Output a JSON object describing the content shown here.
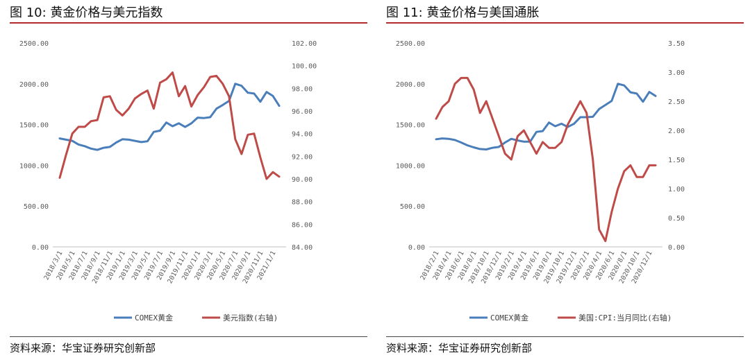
{
  "source_label": "资料来源：",
  "source_text": "华宝证券研究创新部",
  "chart_data": [
    {
      "type": "line",
      "title": "图 10:  黄金价格与美元指数",
      "x": [
        "2018/3/1",
        "2018/4/1",
        "2018/5/1",
        "2018/6/1",
        "2018/7/1",
        "2018/8/1",
        "2018/9/1",
        "2018/10/1",
        "2018/11/1",
        "2018/12/1",
        "2019/1/1",
        "2019/2/1",
        "2019/3/1",
        "2019/4/1",
        "2019/5/1",
        "2019/6/1",
        "2019/7/1",
        "2019/8/1",
        "2019/9/1",
        "2019/10/1",
        "2019/11/1",
        "2019/12/1",
        "2020/1/1",
        "2020/2/1",
        "2020/3/1",
        "2020/4/1",
        "2020/5/1",
        "2020/6/1",
        "2020/7/1",
        "2020/8/1",
        "2020/9/1",
        "2020/10/1",
        "2020/11/1",
        "2020/12/1",
        "2021/1/1",
        "2021/2/1"
      ],
      "x_tick_labels": [
        "2018/3/1",
        "2018/5/1",
        "2018/7/1",
        "2018/9/1",
        "2018/11/1",
        "2019/1/1",
        "2019/3/1",
        "2019/5/1",
        "2019/7/1",
        "2019/9/1",
        "2019/11/1",
        "2020/1/1",
        "2020/3/1",
        "2020/5/1",
        "2020/7/1",
        "2020/9/1",
        "2020/11/1",
        "2021/1/1"
      ],
      "y_left": {
        "min": 0,
        "max": 2500,
        "ticks": [
          "0.00",
          "500.00",
          "1000.00",
          "1500.00",
          "2000.00",
          "2500.00"
        ]
      },
      "y_right": {
        "min": 84,
        "max": 102,
        "ticks": [
          "84.00",
          "86.00",
          "88.00",
          "90.00",
          "92.00",
          "94.00",
          "96.00",
          "98.00",
          "100.00",
          "102.00"
        ]
      },
      "grid": false,
      "legend_position": "bottom",
      "series": [
        {
          "name": "COMEX黄金",
          "axis": "left",
          "color": "#4a7ebb",
          "values": [
            1330,
            1315,
            1300,
            1255,
            1235,
            1205,
            1190,
            1215,
            1225,
            1280,
            1320,
            1315,
            1300,
            1285,
            1295,
            1410,
            1425,
            1525,
            1480,
            1515,
            1470,
            1515,
            1585,
            1580,
            1590,
            1695,
            1740,
            1790,
            2000,
            1975,
            1890,
            1880,
            1780,
            1900,
            1850,
            1730
          ]
        },
        {
          "name": "美元指数(右轴)",
          "axis": "right",
          "color": "#be4b48",
          "values": [
            90.1,
            92.1,
            94.0,
            94.6,
            94.6,
            95.1,
            95.2,
            97.2,
            97.3,
            96.1,
            95.6,
            96.2,
            97.1,
            97.5,
            97.8,
            96.2,
            98.5,
            98.8,
            99.4,
            97.3,
            98.2,
            96.4,
            97.4,
            98.1,
            99.0,
            99.1,
            98.4,
            97.3,
            93.5,
            92.2,
            93.9,
            94.0,
            91.9,
            90.0,
            90.6,
            90.2
          ]
        }
      ]
    },
    {
      "type": "line",
      "title": "图 11:  黄金价格与美国通胀",
      "x": [
        "2018/2/1",
        "2018/3/1",
        "2018/4/1",
        "2018/5/1",
        "2018/6/1",
        "2018/7/1",
        "2018/8/1",
        "2018/9/1",
        "2018/10/1",
        "2018/11/1",
        "2018/12/1",
        "2019/1/1",
        "2019/2/1",
        "2019/3/1",
        "2019/4/1",
        "2019/5/1",
        "2019/6/1",
        "2019/7/1",
        "2019/8/1",
        "2019/9/1",
        "2019/10/1",
        "2019/11/1",
        "2019/12/1",
        "2020/1/1",
        "2020/2/1",
        "2020/3/1",
        "2020/4/1",
        "2020/5/1",
        "2020/6/1",
        "2020/7/1",
        "2020/8/1",
        "2020/9/1",
        "2020/10/1",
        "2020/11/1",
        "2020/12/1",
        "2021/1/1"
      ],
      "x_tick_labels": [
        "2018/2/1",
        "2018/4/1",
        "2018/6/1",
        "2018/8/1",
        "2018/10/1",
        "2018/12/1",
        "2019/2/1",
        "2019/4/1",
        "2019/6/1",
        "2019/8/1",
        "2019/10/1",
        "2019/12/1",
        "2020/2/1",
        "2020/4/1",
        "2020/6/1",
        "2020/8/1",
        "2020/10/1",
        "2020/12/1"
      ],
      "y_left": {
        "min": 0,
        "max": 2500,
        "ticks": [
          "0.00",
          "500.00",
          "1000.00",
          "1500.00",
          "2000.00",
          "2500.00"
        ]
      },
      "y_right": {
        "min": 0,
        "max": 3.5,
        "ticks": [
          "0.00",
          "0.50",
          "1.00",
          "1.50",
          "2.00",
          "2.50",
          "3.00",
          "3.50"
        ]
      },
      "grid": false,
      "legend_position": "bottom",
      "series": [
        {
          "name": "COMEX黄金",
          "axis": "left",
          "color": "#4a7ebb",
          "values": [
            1320,
            1330,
            1325,
            1310,
            1280,
            1245,
            1220,
            1200,
            1195,
            1215,
            1225,
            1280,
            1325,
            1305,
            1290,
            1290,
            1410,
            1420,
            1525,
            1480,
            1510,
            1470,
            1510,
            1590,
            1590,
            1595,
            1690,
            1740,
            1790,
            2000,
            1980,
            1895,
            1880,
            1780,
            1900,
            1850
          ]
        },
        {
          "name": "美国:CPI:当月同比(右轴)",
          "axis": "right",
          "color": "#be4b48",
          "values": [
            2.2,
            2.4,
            2.5,
            2.8,
            2.9,
            2.9,
            2.7,
            2.3,
            2.5,
            2.2,
            1.9,
            1.6,
            1.5,
            1.9,
            2.0,
            1.8,
            1.6,
            1.8,
            1.7,
            1.7,
            1.8,
            2.1,
            2.3,
            2.5,
            2.3,
            1.5,
            0.3,
            0.1,
            0.6,
            1.0,
            1.3,
            1.4,
            1.2,
            1.2,
            1.4,
            1.4
          ]
        }
      ]
    }
  ]
}
